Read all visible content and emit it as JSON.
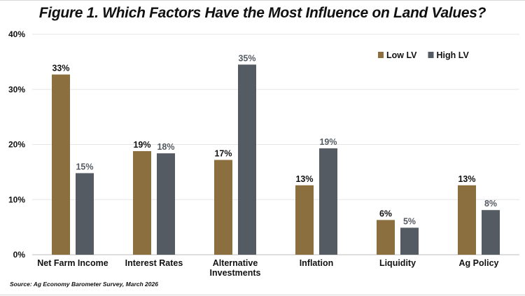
{
  "chart_data": {
    "type": "bar",
    "title": "Figure 1. Which Factors Have the Most Influence on Land Values?",
    "source": "Source: Ag Economy Barometer Survey, March 2026",
    "categories": [
      [
        "Net Farm Income"
      ],
      [
        "Interest Rates"
      ],
      [
        "Alternative",
        "Investments"
      ],
      [
        "Inflation"
      ],
      [
        "Liquidity"
      ],
      [
        "Ag Policy"
      ]
    ],
    "series": [
      {
        "name": "Low LV",
        "color": "#8b6f3f",
        "values": [
          32.7,
          18.8,
          17.2,
          12.6,
          6.3,
          12.6
        ],
        "labels": [
          "33%",
          "19%",
          "17%",
          "13%",
          "6%",
          "13%"
        ]
      },
      {
        "name": "High LV",
        "color": "#555b62",
        "values": [
          14.8,
          18.4,
          34.5,
          19.3,
          4.9,
          8.1
        ],
        "labels": [
          "15%",
          "18%",
          "35%",
          "19%",
          "5%",
          "8%"
        ]
      }
    ],
    "ylim": [
      0,
      40
    ],
    "yticks": [
      0,
      10,
      20,
      30,
      40
    ],
    "ytick_labels": [
      "0%",
      "10%",
      "20%",
      "30%",
      "40%"
    ],
    "xlabel": "",
    "ylabel": "",
    "grid": true,
    "legend_position": "top-right"
  }
}
